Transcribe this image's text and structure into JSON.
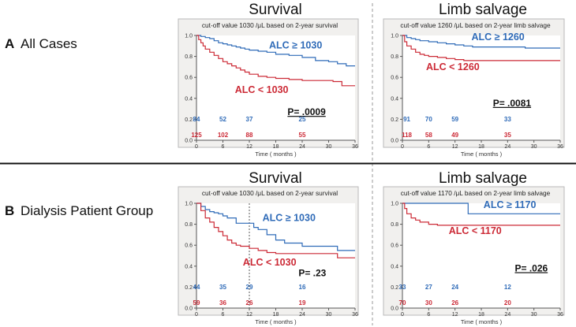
{
  "figure": {
    "rows": [
      {
        "letter": "A",
        "label": "All Cases"
      },
      {
        "letter": "B",
        "label": "Dialysis Patient Group"
      }
    ],
    "columns": [
      "Survival",
      "Limb salvage"
    ]
  },
  "colors": {
    "high": "#2f6bb8",
    "low": "#cc2a36",
    "panel_bg": "#f1f0ee",
    "frame": "#b9b9b9",
    "axis": "#555555"
  },
  "chart_data": [
    {
      "id": "A-survival",
      "type": "line",
      "title": "Survival",
      "subtitle": "cut-off value 1030 /μL based on 2-year survival",
      "xlabel": "Time ( months )",
      "ylabel": "",
      "xlim": [
        0,
        36
      ],
      "ylim": [
        0,
        1.0
      ],
      "x_ticks": [
        0,
        6,
        12,
        18,
        24,
        30,
        36
      ],
      "y_ticks": [
        "0.0",
        "0.2",
        "0.4",
        "0.6",
        "0.8",
        "1.0"
      ],
      "series": [
        {
          "name": "ALC ≥ 1030",
          "group": "high",
          "steps": [
            [
              0,
              1.0
            ],
            [
              1,
              0.99
            ],
            [
              2,
              0.98
            ],
            [
              3,
              0.97
            ],
            [
              4,
              0.95
            ],
            [
              5,
              0.93
            ],
            [
              6,
              0.92
            ],
            [
              7,
              0.91
            ],
            [
              8,
              0.9
            ],
            [
              9,
              0.89
            ],
            [
              10,
              0.88
            ],
            [
              11,
              0.87
            ],
            [
              12,
              0.86
            ],
            [
              14,
              0.85
            ],
            [
              16,
              0.84
            ],
            [
              18,
              0.82
            ],
            [
              21,
              0.81
            ],
            [
              24,
              0.79
            ],
            [
              27,
              0.76
            ],
            [
              30,
              0.75
            ],
            [
              32,
              0.73
            ],
            [
              34,
              0.71
            ],
            [
              36,
              0.71
            ]
          ]
        },
        {
          "name": "ALC  < 1030",
          "group": "low",
          "steps": [
            [
              0,
              1.0
            ],
            [
              0.5,
              0.96
            ],
            [
              1,
              0.93
            ],
            [
              1.5,
              0.9
            ],
            [
              2,
              0.87
            ],
            [
              3,
              0.84
            ],
            [
              4,
              0.81
            ],
            [
              5,
              0.78
            ],
            [
              6,
              0.75
            ],
            [
              7,
              0.73
            ],
            [
              8,
              0.71
            ],
            [
              9,
              0.69
            ],
            [
              10,
              0.67
            ],
            [
              11,
              0.65
            ],
            [
              12,
              0.63
            ],
            [
              14,
              0.61
            ],
            [
              16,
              0.6
            ],
            [
              18,
              0.59
            ],
            [
              21,
              0.58
            ],
            [
              24,
              0.57
            ],
            [
              27,
              0.57
            ],
            [
              31,
              0.56
            ],
            [
              33,
              0.52
            ],
            [
              36,
              0.52
            ]
          ]
        }
      ],
      "labels": [
        {
          "group": "high",
          "text": "ALC ≥ 1030",
          "x": 22.5,
          "y": 0.875
        },
        {
          "group": "low",
          "text": "ALC  < 1030",
          "x": 14.8,
          "y": 0.45
        }
      ],
      "pvalue": "P= .0009",
      "p_underline": true,
      "p_at": [
        25,
        0.24
      ],
      "risk_table": {
        "times": [
          0,
          6,
          12,
          24
        ],
        "high": [
          "84",
          "52",
          "37",
          "25"
        ],
        "low": [
          "125",
          "102",
          "88",
          "55"
        ]
      }
    },
    {
      "id": "A-limb",
      "type": "line",
      "title": "Limb salvage",
      "subtitle": "cut-off value 1260 /μL based on 2-year limb salvage",
      "xlabel": "Time ( months )",
      "ylabel": "",
      "xlim": [
        0,
        36
      ],
      "ylim": [
        0,
        1.0
      ],
      "x_ticks": [
        0,
        6,
        12,
        18,
        24,
        30,
        36
      ],
      "y_ticks": [
        "0.0",
        "0.2",
        "0.4",
        "0.6",
        "0.8",
        "1.0"
      ],
      "series": [
        {
          "name": "ALC ≥ 1260",
          "group": "high",
          "steps": [
            [
              0,
              1.0
            ],
            [
              1,
              0.98
            ],
            [
              2,
              0.97
            ],
            [
              3,
              0.96
            ],
            [
              4,
              0.95
            ],
            [
              6,
              0.94
            ],
            [
              8,
              0.93
            ],
            [
              10,
              0.92
            ],
            [
              12,
              0.91
            ],
            [
              14,
              0.9
            ],
            [
              16,
              0.89
            ],
            [
              24,
              0.89
            ],
            [
              28,
              0.88
            ],
            [
              36,
              0.88
            ]
          ]
        },
        {
          "name": "ALC < 1260",
          "group": "low",
          "steps": [
            [
              0,
              1.0
            ],
            [
              0.5,
              0.94
            ],
            [
              1,
              0.9
            ],
            [
              2,
              0.87
            ],
            [
              3,
              0.84
            ],
            [
              4,
              0.82
            ],
            [
              5,
              0.81
            ],
            [
              6,
              0.8
            ],
            [
              8,
              0.79
            ],
            [
              10,
              0.78
            ],
            [
              12,
              0.77
            ],
            [
              14,
              0.76
            ],
            [
              16,
              0.76
            ],
            [
              36,
              0.76
            ]
          ]
        }
      ],
      "labels": [
        {
          "group": "high",
          "text": "ALC ≥ 1260",
          "x": 21.8,
          "y": 0.955
        },
        {
          "group": "low",
          "text": "ALC < 1260",
          "x": 11.5,
          "y": 0.67
        }
      ],
      "pvalue": "P= .0081",
      "p_underline": true,
      "p_at": [
        25,
        0.325
      ],
      "risk_table": {
        "times": [
          1,
          6,
          12,
          24
        ],
        "high": [
          "91",
          "70",
          "59",
          "33"
        ],
        "low": [
          "118",
          "58",
          "49",
          "35"
        ]
      }
    },
    {
      "id": "B-survival",
      "type": "line",
      "title": "Survival",
      "subtitle": "cut-off value 1030 /μL based on 2-year survival",
      "xlabel": "Time ( months )",
      "ylabel": "",
      "xlim": [
        0,
        36
      ],
      "ylim": [
        0,
        1.0
      ],
      "x_ticks": [
        0,
        6,
        12,
        18,
        24,
        30,
        36
      ],
      "y_ticks": [
        "0.0",
        "0.2",
        "0.4",
        "0.6",
        "0.8",
        "1.0"
      ],
      "vline": 12,
      "series": [
        {
          "name": "ALC ≥ 1030",
          "group": "high",
          "steps": [
            [
              0,
              1.0
            ],
            [
              1,
              0.97
            ],
            [
              2,
              0.94
            ],
            [
              3,
              0.92
            ],
            [
              4,
              0.91
            ],
            [
              5,
              0.9
            ],
            [
              6,
              0.88
            ],
            [
              7,
              0.86
            ],
            [
              9,
              0.81
            ],
            [
              12,
              0.81
            ],
            [
              13,
              0.77
            ],
            [
              14,
              0.75
            ],
            [
              16,
              0.7
            ],
            [
              18,
              0.65
            ],
            [
              20,
              0.62
            ],
            [
              24,
              0.59
            ],
            [
              28,
              0.59
            ],
            [
              32,
              0.55
            ],
            [
              36,
              0.55
            ]
          ]
        },
        {
          "name": "ALC < 1030",
          "group": "low",
          "steps": [
            [
              0,
              1.0
            ],
            [
              1,
              0.93
            ],
            [
              2,
              0.86
            ],
            [
              3,
              0.82
            ],
            [
              4,
              0.77
            ],
            [
              5,
              0.73
            ],
            [
              6,
              0.69
            ],
            [
              7,
              0.65
            ],
            [
              8,
              0.62
            ],
            [
              9,
              0.6
            ],
            [
              10,
              0.59
            ],
            [
              12,
              0.57
            ],
            [
              14,
              0.55
            ],
            [
              16,
              0.53
            ],
            [
              18,
              0.52
            ],
            [
              24,
              0.52
            ],
            [
              28,
              0.52
            ],
            [
              32,
              0.48
            ],
            [
              36,
              0.48
            ]
          ]
        }
      ],
      "labels": [
        {
          "group": "high",
          "text": "ALC ≥ 1030",
          "x": 21,
          "y": 0.83
        },
        {
          "group": "low",
          "text": "ALC < 1030",
          "x": 16.6,
          "y": 0.405
        }
      ],
      "pvalue": "P= .23",
      "p_underline": false,
      "p_at": [
        26.3,
        0.305
      ],
      "risk_table": {
        "times": [
          0,
          6,
          12,
          24
        ],
        "high": [
          "44",
          "35",
          "29",
          "16"
        ],
        "low": [
          "59",
          "36",
          "26",
          "19"
        ]
      }
    },
    {
      "id": "B-limb",
      "type": "line",
      "title": "Limb salvage",
      "subtitle": "cut-off value 1170 /μL based on 2-year limb salvage",
      "xlabel": "Time ( months )",
      "ylabel": "",
      "xlim": [
        0,
        36
      ],
      "ylim": [
        0,
        1.0
      ],
      "x_ticks": [
        0,
        6,
        12,
        18,
        24,
        30,
        36
      ],
      "y_ticks": [
        "0.0",
        "0.2",
        "0.4",
        "0.6",
        "0.8",
        "1.0"
      ],
      "series": [
        {
          "name": "ALC ≥ 1170",
          "group": "high",
          "steps": [
            [
              0,
              1.0
            ],
            [
              15,
              1.0
            ],
            [
              15,
              0.9
            ],
            [
              36,
              0.9
            ]
          ]
        },
        {
          "name": "ALC < 1170",
          "group": "low",
          "steps": [
            [
              0,
              1.0
            ],
            [
              0.5,
              0.95
            ],
            [
              1,
              0.9
            ],
            [
              2,
              0.86
            ],
            [
              3,
              0.84
            ],
            [
              4,
              0.82
            ],
            [
              6,
              0.8
            ],
            [
              8,
              0.79
            ],
            [
              36,
              0.79
            ]
          ]
        }
      ],
      "labels": [
        {
          "group": "high",
          "text": "ALC ≥ 1170",
          "x": 24.5,
          "y": 0.955
        },
        {
          "group": "low",
          "text": "ALC < 1170",
          "x": 16.6,
          "y": 0.705
        }
      ],
      "pvalue": "P= .026",
      "p_underline": true,
      "p_at": [
        29.4,
        0.35
      ],
      "risk_table": {
        "times": [
          0,
          6,
          12,
          24
        ],
        "high": [
          "33",
          "27",
          "24",
          "12"
        ],
        "low": [
          "70",
          "30",
          "26",
          "20"
        ]
      }
    }
  ]
}
